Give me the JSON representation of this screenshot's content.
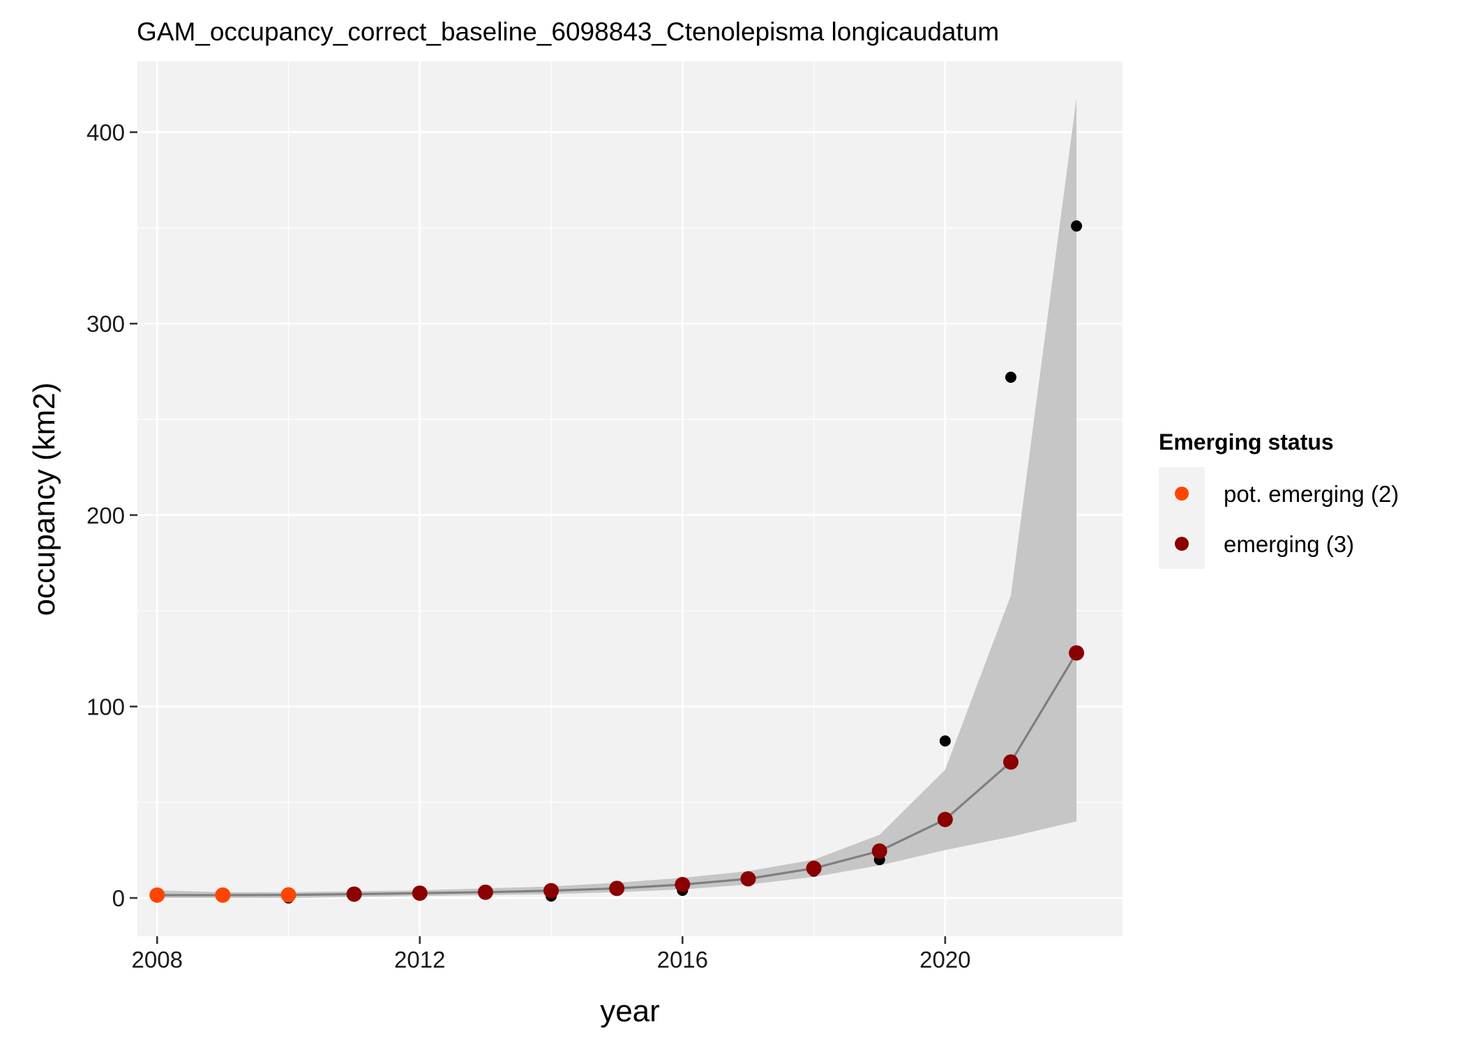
{
  "chart_data": {
    "type": "scatter",
    "title": "GAM_occupancy_correct_baseline_6098843_Ctenolepisma longicaudatum",
    "xlabel": "year",
    "ylabel": "occupancy (km2)",
    "xlim": [
      2007.7,
      2022.7
    ],
    "ylim": [
      -20,
      437
    ],
    "x_ticks": [
      2008,
      2012,
      2016,
      2020
    ],
    "y_ticks": [
      0,
      100,
      200,
      300,
      400
    ],
    "grid": true,
    "legend_position": "right",
    "legend": {
      "title": "Emerging status",
      "items": [
        {
          "label": "pot. emerging (2)",
          "color": "#ff4500"
        },
        {
          "label": "emerging (3)",
          "color": "#8b0000"
        }
      ]
    },
    "observed": {
      "x": [
        2008,
        2009,
        2010,
        2011,
        2012,
        2013,
        2014,
        2015,
        2016,
        2017,
        2018,
        2019,
        2020,
        2021,
        2022
      ],
      "y": [
        1,
        1,
        0,
        2,
        2,
        3,
        1,
        5,
        4,
        10,
        14,
        20,
        82,
        272,
        351
      ],
      "color": "#000000"
    },
    "fitted": {
      "x": [
        2008,
        2009,
        2010,
        2011,
        2012,
        2013,
        2014,
        2015,
        2016,
        2017,
        2018,
        2019,
        2020,
        2021,
        2022
      ],
      "y": [
        1.5,
        1.5,
        1.6,
        2,
        2.5,
        3,
        3.8,
        5,
        7,
        10,
        15.5,
        24.5,
        41,
        71,
        128
      ],
      "status": [
        2,
        2,
        2,
        3,
        3,
        3,
        3,
        3,
        3,
        3,
        3,
        3,
        3,
        3,
        3
      ],
      "lower": [
        0,
        0,
        0,
        0.5,
        1,
        1.5,
        2,
        3,
        4.5,
        7,
        11,
        17,
        25,
        32,
        40
      ],
      "upper": [
        4,
        3,
        3,
        3.5,
        4,
        5,
        6,
        8,
        10.5,
        14,
        20,
        33,
        67,
        158,
        418
      ],
      "line_color": "#7f7f7f",
      "band_color": "#c6c6c6"
    },
    "status_colors": {
      "2": "#ff4500",
      "3": "#8b0000"
    }
  }
}
